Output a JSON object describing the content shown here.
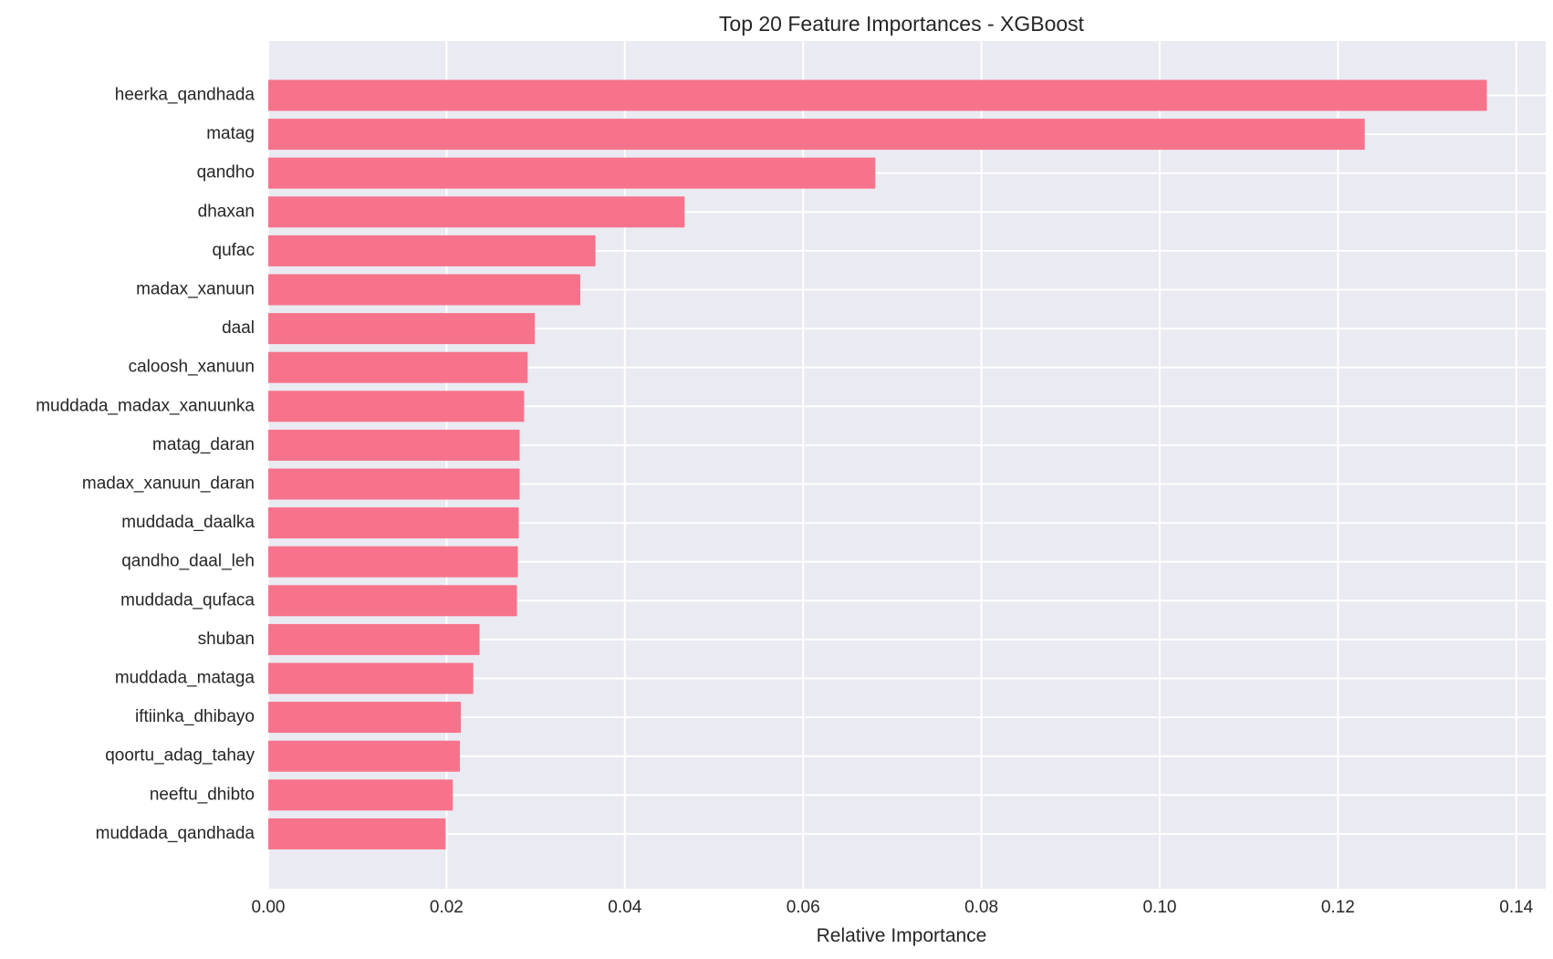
{
  "chart_data": {
    "type": "bar",
    "orientation": "horizontal",
    "title": "Top 20 Feature Importances - XGBoost",
    "xlabel": "Relative Importance",
    "ylabel": "",
    "xlim": [
      0,
      0.1433
    ],
    "xticks": [
      0.0,
      0.02,
      0.04,
      0.06,
      0.08,
      0.1,
      0.12,
      0.14
    ],
    "xtick_labels": [
      "0.00",
      "0.02",
      "0.04",
      "0.06",
      "0.08",
      "0.10",
      "0.12",
      "0.14"
    ],
    "grid": true,
    "legend": "none",
    "colors": {
      "bar": "#f7738b",
      "plot_background": "#eaeaf2",
      "grid": "#ffffff",
      "text": "#262626"
    },
    "categories": [
      "heerka_qandhada",
      "matag",
      "qandho",
      "dhaxan",
      "qufac",
      "madax_xanuun",
      "daal",
      "caloosh_xanuun",
      "muddada_madax_xanuunka",
      "matag_daran",
      "madax_xanuun_daran",
      "muddada_daalka",
      "qandho_daal_leh",
      "muddada_qufaca",
      "shuban",
      "muddada_mataga",
      "iftiinka_dhibayo",
      "qoortu_adag_tahay",
      "neeftu_dhibto",
      "muddada_qandhada"
    ],
    "values": [
      0.1367,
      0.123,
      0.0681,
      0.0467,
      0.0367,
      0.035,
      0.0299,
      0.0291,
      0.0287,
      0.0282,
      0.0282,
      0.0281,
      0.028,
      0.0279,
      0.0237,
      0.023,
      0.0216,
      0.0215,
      0.0207,
      0.0199
    ]
  }
}
